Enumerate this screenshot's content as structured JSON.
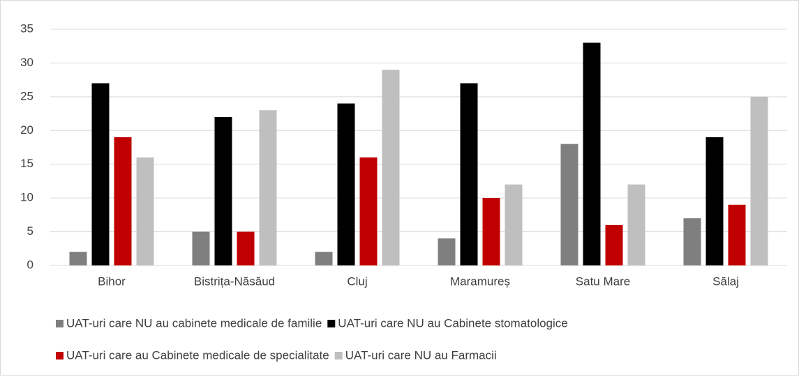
{
  "chart_data": {
    "type": "bar",
    "categories": [
      "Bihor",
      "Bistrița-Năsăud",
      "Cluj",
      "Maramureș",
      "Satu Mare",
      "Sălaj"
    ],
    "series": [
      {
        "name": "UAT-uri care NU au cabinete medicale de familie",
        "color": "#7f7f7f",
        "values": [
          2,
          5,
          2,
          4,
          18,
          7
        ]
      },
      {
        "name": "UAT-uri care NU au Cabinete stomatologice",
        "color": "#000000",
        "values": [
          27,
          22,
          24,
          27,
          33,
          19
        ]
      },
      {
        "name": "UAT-uri care au Cabinete medicale de specialitate",
        "color": "#c00000",
        "values": [
          19,
          5,
          16,
          10,
          6,
          9
        ]
      },
      {
        "name": "UAT-uri care NU au Farmacii",
        "color": "#bfbfbf",
        "values": [
          16,
          23,
          29,
          12,
          12,
          25
        ]
      }
    ],
    "ylim": [
      0,
      35
    ],
    "yticks": [
      0,
      5,
      10,
      15,
      20,
      25,
      30,
      35
    ],
    "grid": true,
    "legend": "bottom"
  }
}
